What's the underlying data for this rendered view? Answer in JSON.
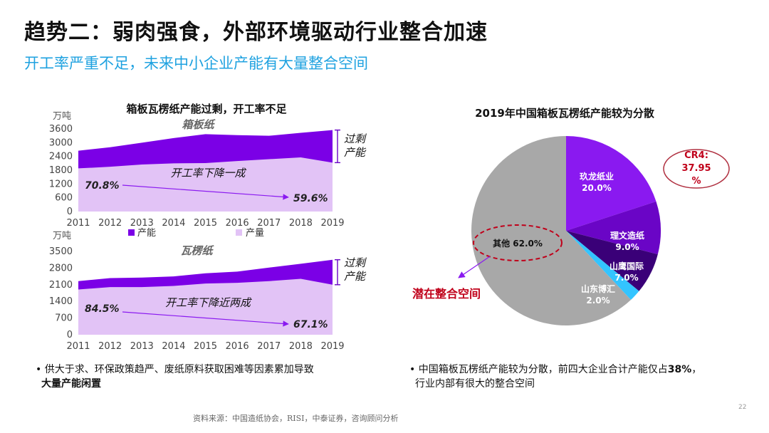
{
  "slide": {
    "title": "趋势二：弱肉强食，外部环境驱动行业整合加速",
    "subtitle": "开工率严重不足，未来中小企业产能有大量整合空间",
    "source": "资料来源：中国造纸协会，RISI，中泰证券，咨询顾问分析",
    "page_number": "22"
  },
  "bullets": {
    "left_prefix": "供大于求、环保政策趋严、废纸原料获取困难等因素累加导致",
    "left_bold": "大量产能闲置",
    "right_line1_prefix": "中国箱板瓦楞纸产能较为分散，前四大企业合计产能仅占",
    "right_line1_bold": "38%",
    "right_line1_suffix": "，",
    "right_line2": "行业内部有很大的整合空间"
  },
  "colors": {
    "capacity": "#7b00e6",
    "output": "#e2c3f6",
    "subtitle": "#1fa2e0",
    "pie_jiulong": "#8a19f0",
    "pie_liwen": "#6a05c6",
    "pie_shanying": "#3a0078",
    "pie_shandong": "#33c4ff",
    "pie_other": "#a8a8a8",
    "highlight_red": "#c0001a"
  },
  "chart_data": [
    {
      "type": "area",
      "title": "箱板瓦楞纸产能过剩，开工率不足",
      "panel_label": "箱板纸",
      "unit": "万吨",
      "x": [
        "2011",
        "2012",
        "2013",
        "2014",
        "2015",
        "2016",
        "2017",
        "2018",
        "2019"
      ],
      "ylim": [
        0,
        3600
      ],
      "yticks": [
        "0",
        "600",
        "1200",
        "1800",
        "2400",
        "3000",
        "3600"
      ],
      "series": [
        {
          "name": "产能",
          "values": [
            2650,
            2800,
            3000,
            3200,
            3370,
            3330,
            3300,
            3430,
            3550
          ]
        },
        {
          "name": "产量",
          "values": [
            1880,
            1950,
            2050,
            2100,
            2110,
            2200,
            2280,
            2360,
            2130
          ]
        }
      ],
      "annotations": {
        "start_rate": "70.8%",
        "end_rate": "59.6%",
        "trend_text": "开工率下降一成",
        "gap_text_line1": "过剩",
        "gap_text_line2": "产能"
      },
      "legend": [
        "产能",
        "产量"
      ]
    },
    {
      "type": "area",
      "panel_label": "瓦楞纸",
      "unit": "万吨",
      "x": [
        "2011",
        "2012",
        "2013",
        "2014",
        "2015",
        "2016",
        "2017",
        "2018",
        "2019"
      ],
      "ylim": [
        0,
        3500
      ],
      "yticks": [
        "0",
        "700",
        "1400",
        "2100",
        "2800",
        "3500"
      ],
      "series": [
        {
          "name": "产能",
          "values": [
            2250,
            2380,
            2400,
            2450,
            2580,
            2650,
            2820,
            2980,
            3150
          ]
        },
        {
          "name": "产量",
          "values": [
            1900,
            2000,
            2000,
            2050,
            2150,
            2180,
            2250,
            2350,
            2100
          ]
        }
      ],
      "annotations": {
        "start_rate": "84.5%",
        "end_rate": "67.1%",
        "trend_text": "开工率下降近两成",
        "gap_text_line1": "过剩",
        "gap_text_line2": "产能"
      }
    },
    {
      "type": "pie",
      "title": "2019年中国箱板瓦楞纸产能较为分散",
      "slices": [
        {
          "name": "玖龙纸业",
          "value": 20.0,
          "label": "20.0%"
        },
        {
          "name": "理文造纸",
          "value": 9.0,
          "label": "9.0%"
        },
        {
          "name": "山鹰国际",
          "value": 7.0,
          "label": "7.0%"
        },
        {
          "name": "山东博汇",
          "value": 2.0,
          "label": "2.0%"
        },
        {
          "name": "其他",
          "value": 62.0,
          "label": "62.0%"
        }
      ],
      "cr4_label": "CR4: 37.95 %",
      "cr4_line1": "CR4:",
      "cr4_line2": "37.95",
      "cr4_line3": "%",
      "other_label": "其他 62.0%",
      "callout": "潜在整合空间"
    }
  ]
}
